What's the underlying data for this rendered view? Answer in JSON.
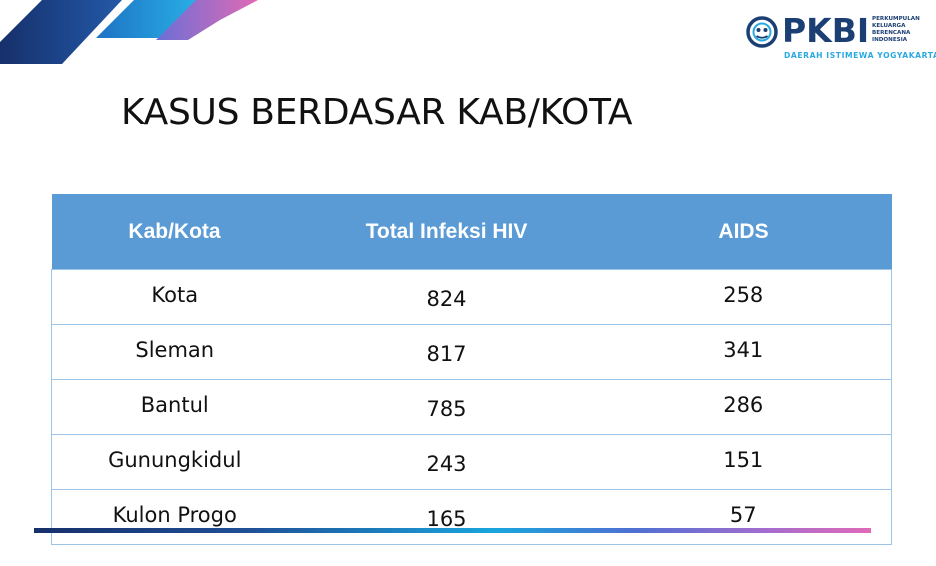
{
  "logo": {
    "name": "PKBI",
    "org_lines": [
      "PERKUMPULAN",
      "KELUARGA",
      "BERENCANA",
      "INDONESIA"
    ],
    "region": "DAERAH ISTIMEWA YOGYAKARTA"
  },
  "title": "KASUS BERDASAR KAB/KOTA",
  "table": {
    "headers": [
      "Kab/Kota",
      "Total Infeksi  HIV",
      "AIDS"
    ],
    "rows": [
      {
        "name": "Kota",
        "hiv": "824",
        "aids": "258"
      },
      {
        "name": "Sleman",
        "hiv": "817",
        "aids": "341"
      },
      {
        "name": "Bantul",
        "hiv": "785",
        "aids": "286"
      },
      {
        "name": "Gunungkidul",
        "hiv": "243",
        "aids": "151"
      },
      {
        "name": "Kulon Progo",
        "hiv": "165",
        "aids": "57"
      }
    ]
  },
  "colors": {
    "header_bg": "#5b9bd5",
    "border": "#9dc3e6",
    "logo_navy": "#1c3f73",
    "logo_cyan": "#29a9e1"
  }
}
